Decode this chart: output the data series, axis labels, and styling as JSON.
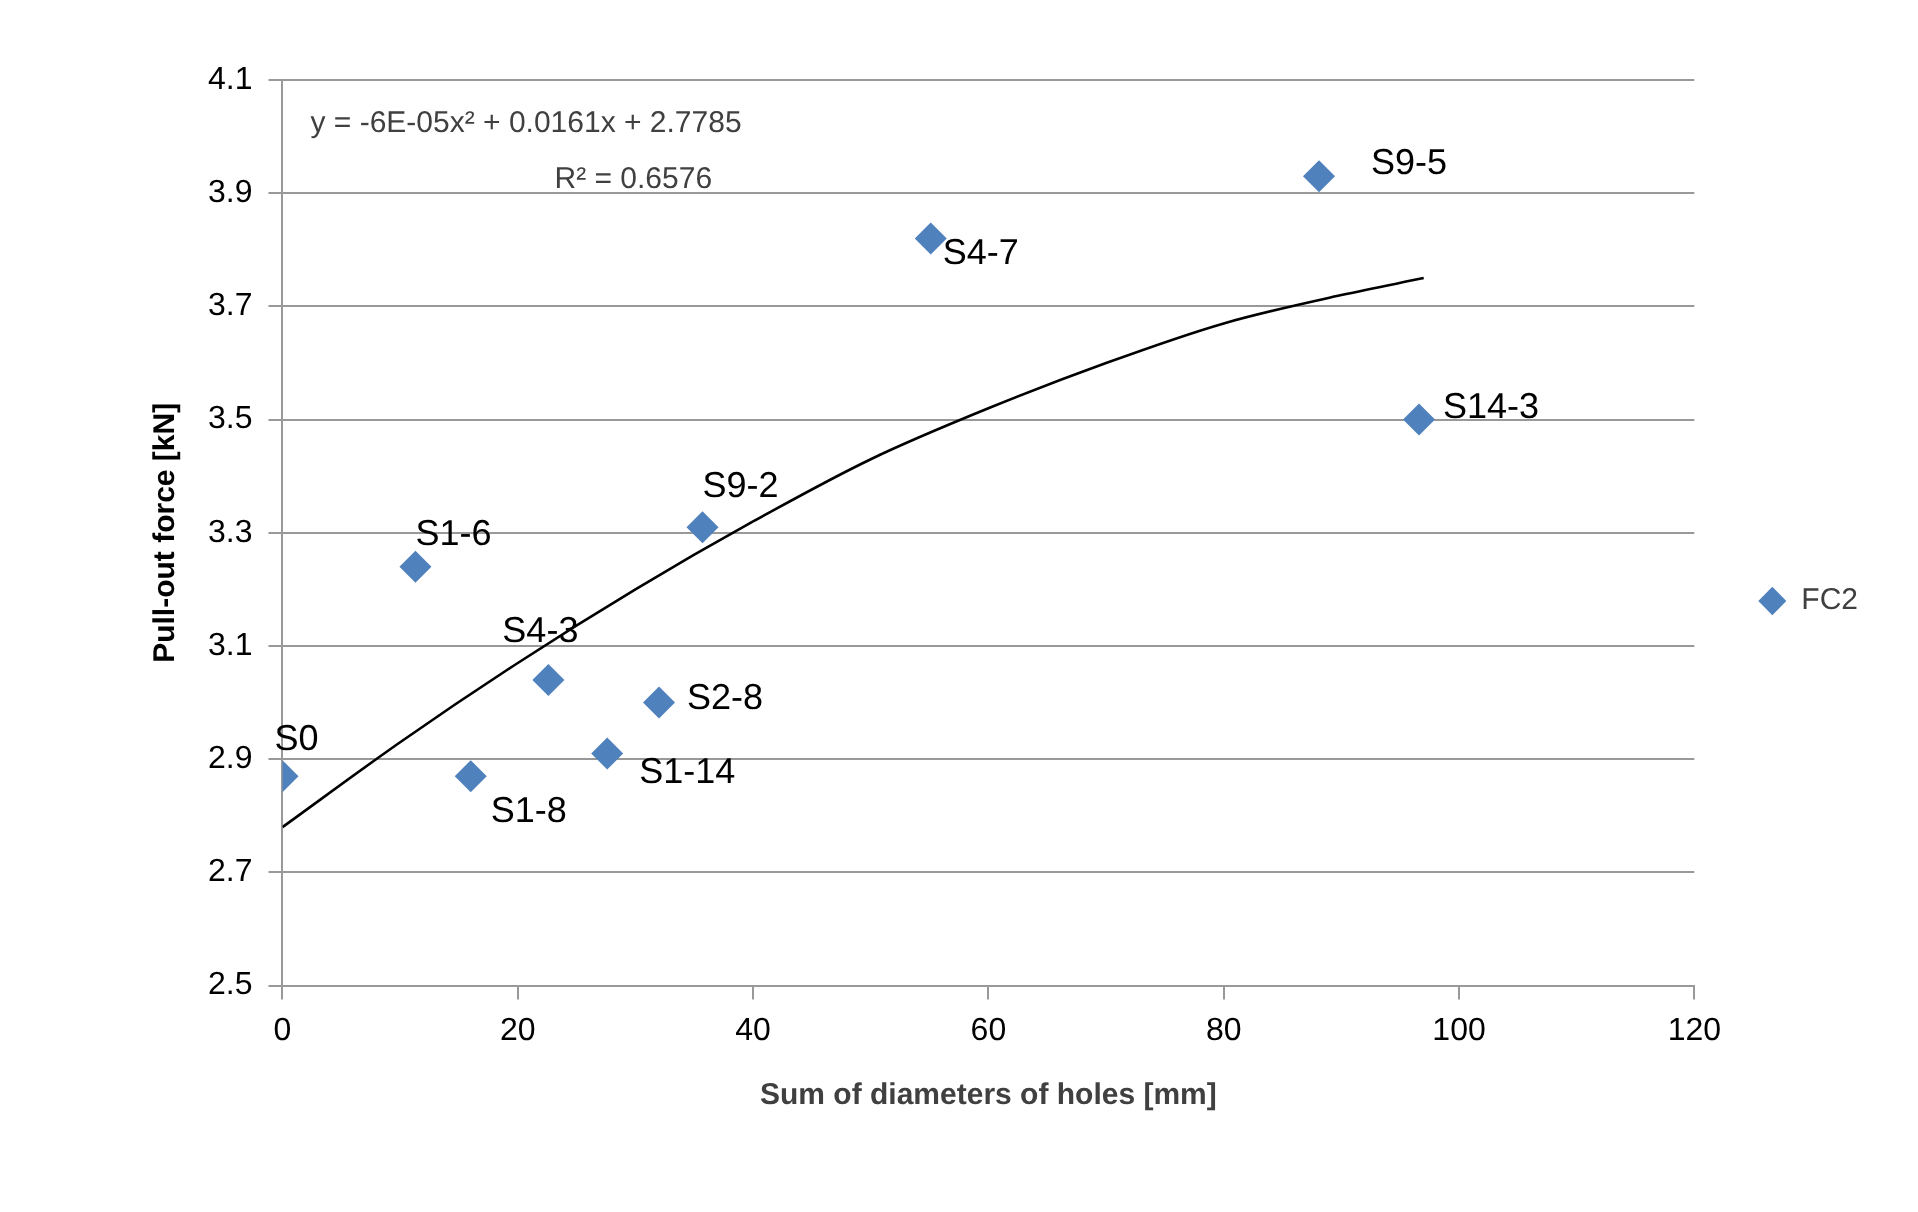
{
  "chart_data": {
    "type": "scatter",
    "xlabel": "Sum of diameters of holes [mm]",
    "ylabel": "Pull-out force [kN]",
    "xlim": [
      0,
      120
    ],
    "xticks": [
      0,
      20,
      40,
      60,
      80,
      100,
      120
    ],
    "ylim": [
      2.5,
      4.1
    ],
    "yticks": [
      2.5,
      2.7,
      2.9,
      3.1,
      3.3,
      3.5,
      3.7,
      3.9,
      4.1
    ],
    "grid": "y",
    "legend": "right",
    "marker": "diamond",
    "series": [
      {
        "name": "FC2",
        "color": "#4f81bd",
        "x": [
          0,
          11.3,
          16,
          22.6,
          27.6,
          32,
          35.7,
          55.1,
          88.1,
          96.6
        ],
        "values": [
          2.87,
          3.24,
          2.87,
          3.04,
          2.91,
          3.0,
          3.31,
          3.82,
          3.93,
          3.5
        ]
      },
      {
        "type": "line",
        "color": "#000000",
        "marker": "none",
        "x": [
          0,
          10,
          20,
          30,
          40,
          50,
          60,
          70,
          80,
          90,
          97
        ],
        "values": [
          2.78,
          2.93,
          3.07,
          3.2,
          3.32,
          3.43,
          3.52,
          3.6,
          3.67,
          3.72,
          3.75
        ]
      }
    ],
    "annotations": [
      "y = -6E-05x² + 0.0161x + 2.7785",
      "R² = 0.6576",
      {
        "text": "S0",
        "x": 0,
        "y": 2.87
      },
      {
        "text": "S1-6",
        "x": 11.3,
        "y": 3.24
      },
      {
        "text": "S1-8",
        "x": 16,
        "y": 2.87
      },
      {
        "text": "S4-3",
        "x": 22.6,
        "y": 3.04
      },
      {
        "text": "S1-14",
        "x": 27.6,
        "y": 2.91
      },
      {
        "text": "S2-8",
        "x": 32,
        "y": 3.0
      },
      {
        "text": "S9-2",
        "x": 35.7,
        "y": 3.31
      },
      {
        "text": "S4-7",
        "x": 55.1,
        "y": 3.82
      },
      {
        "text": "S9-5",
        "x": 88.1,
        "y": 3.93
      },
      {
        "text": "S14-3",
        "x": 96.6,
        "y": 3.5
      }
    ]
  }
}
